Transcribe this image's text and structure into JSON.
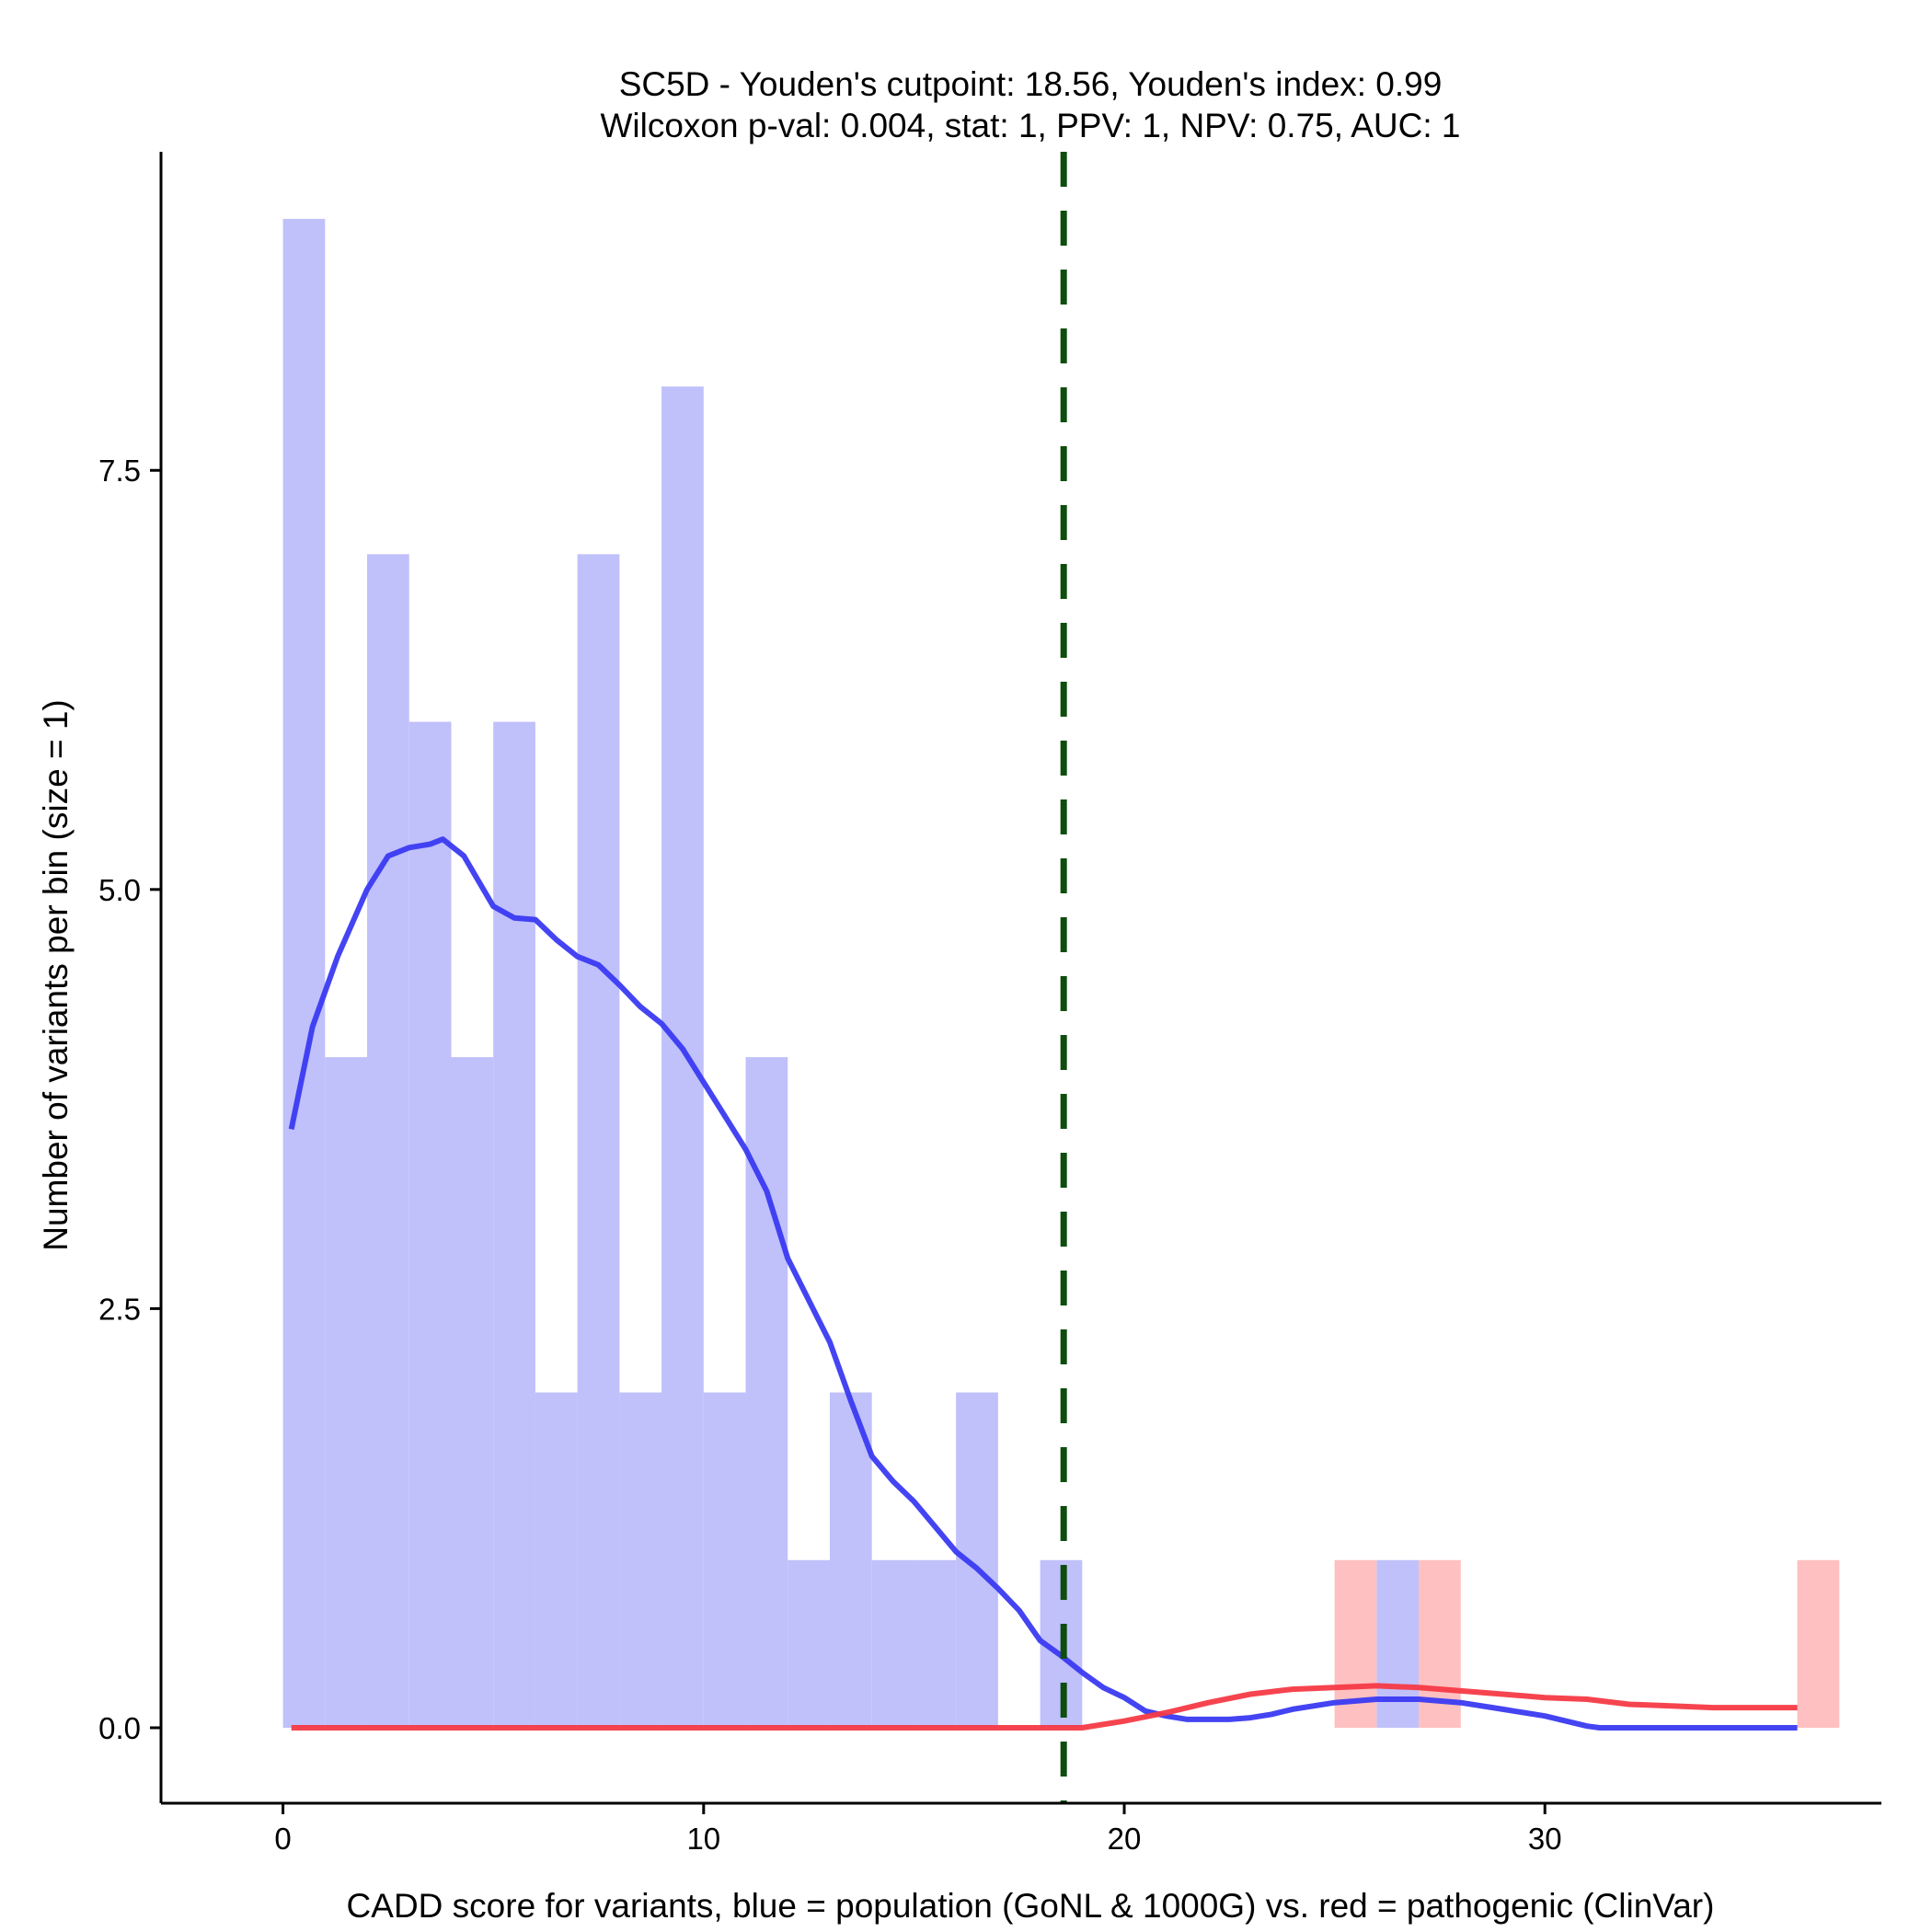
{
  "chart_data": {
    "type": "histogram",
    "title_line1": "SC5D - Youden's cutpoint: 18.56, Youden's index: 0.99",
    "title_line2": "Wilcoxon p-val: 0.004, stat: 1, PPV: 1, NPV: 0.75, AUC: 1",
    "xlabel": "CADD score for variants, blue = population (GoNL & 1000G) vs. red = pathogenic (ClinVar)",
    "ylabel": "Number of variants per bin (size = 1)",
    "xlim": [
      -2.9,
      38.0
    ],
    "ylim": [
      -0.45,
      9.4
    ],
    "x_ticks": [
      0,
      10,
      20,
      30
    ],
    "x_tick_labels": [
      "0",
      "10",
      "20",
      "30"
    ],
    "y_ticks": [
      0,
      2.5,
      5,
      7.5
    ],
    "y_tick_labels": [
      "0.0",
      "2.5",
      "5.0",
      "7.5"
    ],
    "bin_width": 1,
    "cutpoint": 18.56,
    "colors": {
      "population_bar": "#c0c0fb",
      "pathogenic_bar": "#fec0c0",
      "population_line": "#3a3af2",
      "pathogenic_line": "#f63a46",
      "cutpoint_line": "#0e4d0e",
      "axis": "#000000"
    },
    "series": [
      {
        "name": "population (GoNL & 1000G)",
        "bins_start": [
          0,
          1,
          2,
          3,
          4,
          5,
          6,
          7,
          8,
          9,
          10,
          11,
          12,
          13,
          14,
          15,
          16,
          17,
          18,
          19,
          20,
          21,
          22,
          23,
          24,
          25,
          26,
          27,
          28,
          29,
          30,
          31,
          32,
          33,
          34,
          35,
          36
        ],
        "counts": [
          9,
          4,
          7,
          6,
          4,
          6,
          2,
          7,
          2,
          8,
          2,
          4,
          1,
          2,
          1,
          1,
          2,
          0,
          1,
          0,
          0,
          0,
          0,
          0,
          0,
          0,
          1,
          0,
          0,
          0,
          0,
          0,
          0,
          0,
          0,
          0,
          0
        ],
        "density_curve": {
          "x": [
            0.2,
            0.7,
            1.3,
            2,
            2.5,
            3,
            3.5,
            3.8,
            4.3,
            5,
            5.5,
            6,
            6.5,
            7,
            7.5,
            8,
            8.5,
            9,
            9.5,
            10,
            10.5,
            11,
            11.5,
            12,
            12.5,
            13,
            13.5,
            14,
            14.5,
            15,
            15.5,
            16,
            16.5,
            17,
            17.5,
            18,
            18.5,
            19,
            19.5,
            20,
            20.5,
            21,
            21.5,
            22,
            22.5,
            23,
            23.5,
            24,
            25,
            26,
            27,
            28,
            29,
            30,
            31,
            31.3,
            32,
            33,
            34,
            35,
            36
          ],
          "y": [
            3.57,
            4.18,
            4.6,
            5.0,
            5.2,
            5.25,
            5.27,
            5.3,
            5.2,
            4.9,
            4.83,
            4.82,
            4.7,
            4.6,
            4.55,
            4.43,
            4.3,
            4.2,
            4.05,
            3.85,
            3.65,
            3.45,
            3.2,
            2.8,
            2.55,
            2.3,
            1.95,
            1.62,
            1.47,
            1.35,
            1.2,
            1.05,
            0.95,
            0.83,
            0.7,
            0.52,
            0.43,
            0.33,
            0.24,
            0.18,
            0.1,
            0.07,
            0.05,
            0.05,
            0.05,
            0.06,
            0.08,
            0.11,
            0.15,
            0.17,
            0.17,
            0.15,
            0.11,
            0.07,
            0.01,
            0.0,
            0.0,
            0.0,
            0.0,
            0.0,
            0.0
          ]
        }
      },
      {
        "name": "pathogenic (ClinVar)",
        "bins_start": [
          25,
          26,
          27,
          36
        ],
        "counts": [
          1,
          0,
          1,
          1
        ],
        "density_curve": {
          "x": [
            0.2,
            19,
            20,
            21,
            22,
            23,
            24,
            25,
            26,
            27,
            28,
            29,
            30,
            31,
            32,
            33,
            34,
            35,
            36
          ],
          "y": [
            0.0,
            0.0,
            0.04,
            0.09,
            0.15,
            0.2,
            0.23,
            0.24,
            0.25,
            0.24,
            0.22,
            0.2,
            0.18,
            0.17,
            0.14,
            0.13,
            0.12,
            0.12,
            0.12
          ]
        }
      }
    ]
  }
}
